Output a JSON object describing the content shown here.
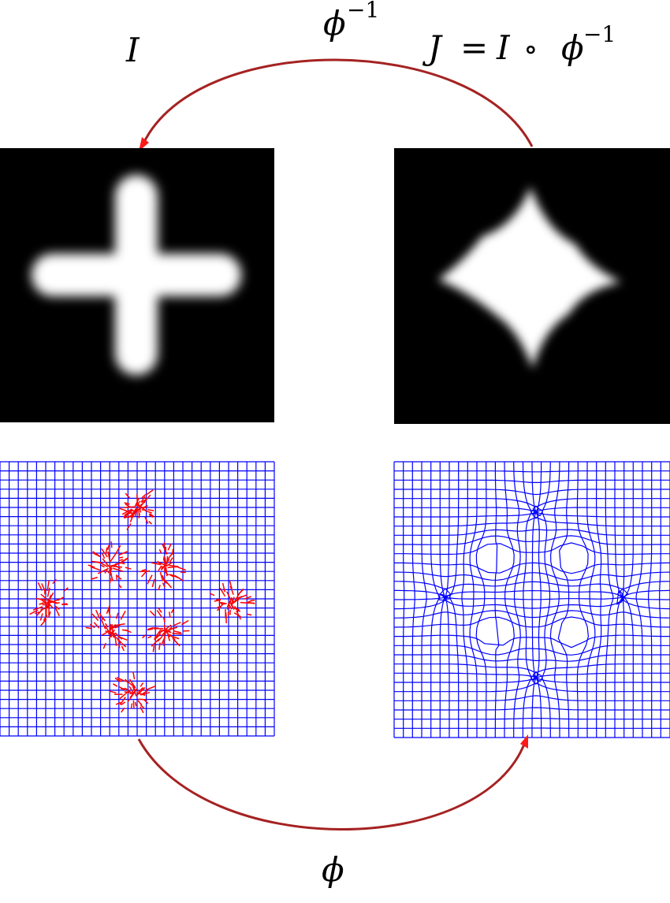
{
  "labels": {
    "source_image": "I",
    "target_image_lhs": "J",
    "target_image_eq": "=",
    "target_image_I": "I",
    "target_image_compose": "∘",
    "target_image_phi": "ϕ",
    "target_image_exp": "−1",
    "inverse_map_phi": "ϕ",
    "inverse_map_exp": "−1",
    "forward_map": "ϕ"
  },
  "colors": {
    "background": "#ffffff",
    "panel": "#000000",
    "shape": "#ffffff",
    "grid": "#0000ff",
    "vectors": "#ff0000",
    "arc": "#a52222",
    "arrowhead": "#ff1a1a"
  },
  "icons": {
    "top_arc": "arrow-arc-icon",
    "bottom_arc": "arrow-arc-icon"
  }
}
